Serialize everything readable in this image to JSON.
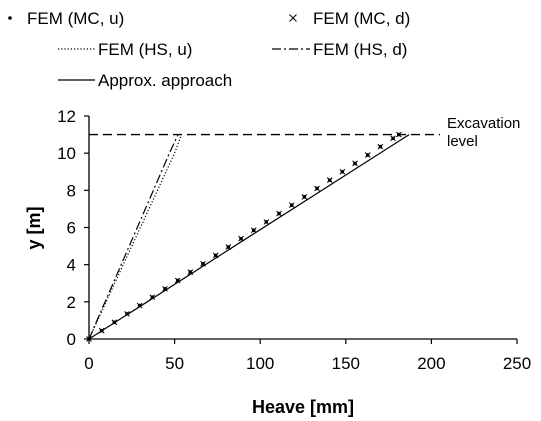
{
  "chart_data": {
    "type": "line",
    "xlabel": "Heave [mm]",
    "ylabel": "y [m]",
    "xlim": [
      0,
      250
    ],
    "ylim": [
      0,
      12
    ],
    "xticks": [
      0,
      50,
      100,
      150,
      200,
      250
    ],
    "yticks": [
      0,
      2,
      4,
      6,
      8,
      10,
      12
    ],
    "grid": false,
    "legend_position": "top",
    "annotation": {
      "text_lines": [
        "Excavation",
        "level"
      ],
      "y": 11
    },
    "reference_line": {
      "y": 11,
      "style": "dashed"
    },
    "series": [
      {
        "name": "FEM (MC, u)",
        "style": "dot-markers",
        "points": [
          [
            0,
            0
          ],
          [
            7.4,
            0.45
          ],
          [
            14.8,
            0.9
          ],
          [
            22.2,
            1.35
          ],
          [
            29.6,
            1.8
          ],
          [
            37,
            2.25
          ],
          [
            44.4,
            2.7
          ],
          [
            51.8,
            3.15
          ],
          [
            59.2,
            3.6
          ],
          [
            66.6,
            4.05
          ],
          [
            74,
            4.5
          ],
          [
            81.4,
            4.95
          ],
          [
            88.8,
            5.4
          ],
          [
            96.2,
            5.85
          ],
          [
            103.6,
            6.3
          ],
          [
            111,
            6.75
          ],
          [
            118.4,
            7.2
          ],
          [
            125.8,
            7.65
          ],
          [
            133.2,
            8.1
          ],
          [
            140.6,
            8.55
          ],
          [
            148,
            9
          ],
          [
            155.4,
            9.45
          ],
          [
            162.8,
            9.9
          ],
          [
            170.2,
            10.35
          ],
          [
            177.6,
            10.8
          ],
          [
            181,
            11
          ]
        ]
      },
      {
        "name": "FEM (MC, d)",
        "style": "x-markers",
        "points": [
          [
            0,
            0
          ],
          [
            7.4,
            0.45
          ],
          [
            14.8,
            0.9
          ],
          [
            22.2,
            1.35
          ],
          [
            29.6,
            1.8
          ],
          [
            37,
            2.25
          ],
          [
            44.4,
            2.7
          ],
          [
            51.8,
            3.15
          ],
          [
            59.2,
            3.6
          ],
          [
            66.6,
            4.05
          ],
          [
            74,
            4.5
          ],
          [
            81.4,
            4.95
          ],
          [
            88.8,
            5.4
          ],
          [
            96.2,
            5.85
          ],
          [
            103.6,
            6.3
          ],
          [
            111,
            6.75
          ],
          [
            118.4,
            7.2
          ],
          [
            125.8,
            7.65
          ],
          [
            133.2,
            8.1
          ],
          [
            140.6,
            8.55
          ],
          [
            148,
            9
          ],
          [
            155.4,
            9.45
          ],
          [
            162.8,
            9.9
          ],
          [
            170.2,
            10.35
          ],
          [
            177.6,
            10.8
          ],
          [
            181,
            11
          ]
        ]
      },
      {
        "name": "FEM (HS, u)",
        "style": "dotted",
        "points": [
          [
            0,
            0
          ],
          [
            5,
            1
          ],
          [
            10,
            2
          ],
          [
            15,
            3
          ],
          [
            20,
            4
          ],
          [
            25,
            5
          ],
          [
            30,
            6
          ],
          [
            35,
            7
          ],
          [
            40,
            8
          ],
          [
            45,
            9
          ],
          [
            50,
            10
          ],
          [
            54,
            11
          ]
        ]
      },
      {
        "name": "FEM (HS, d)",
        "style": "dash-dot",
        "points": [
          [
            0,
            0
          ],
          [
            4.7,
            1
          ],
          [
            9.4,
            2
          ],
          [
            14.1,
            3
          ],
          [
            18.8,
            4
          ],
          [
            23.5,
            5
          ],
          [
            28.2,
            6
          ],
          [
            32.9,
            7
          ],
          [
            37.6,
            8
          ],
          [
            42.3,
            9
          ],
          [
            47,
            10
          ],
          [
            52,
            11
          ]
        ]
      },
      {
        "name": "Approx. approach",
        "style": "solid",
        "points": [
          [
            0,
            0
          ],
          [
            187,
            11
          ]
        ]
      }
    ]
  }
}
